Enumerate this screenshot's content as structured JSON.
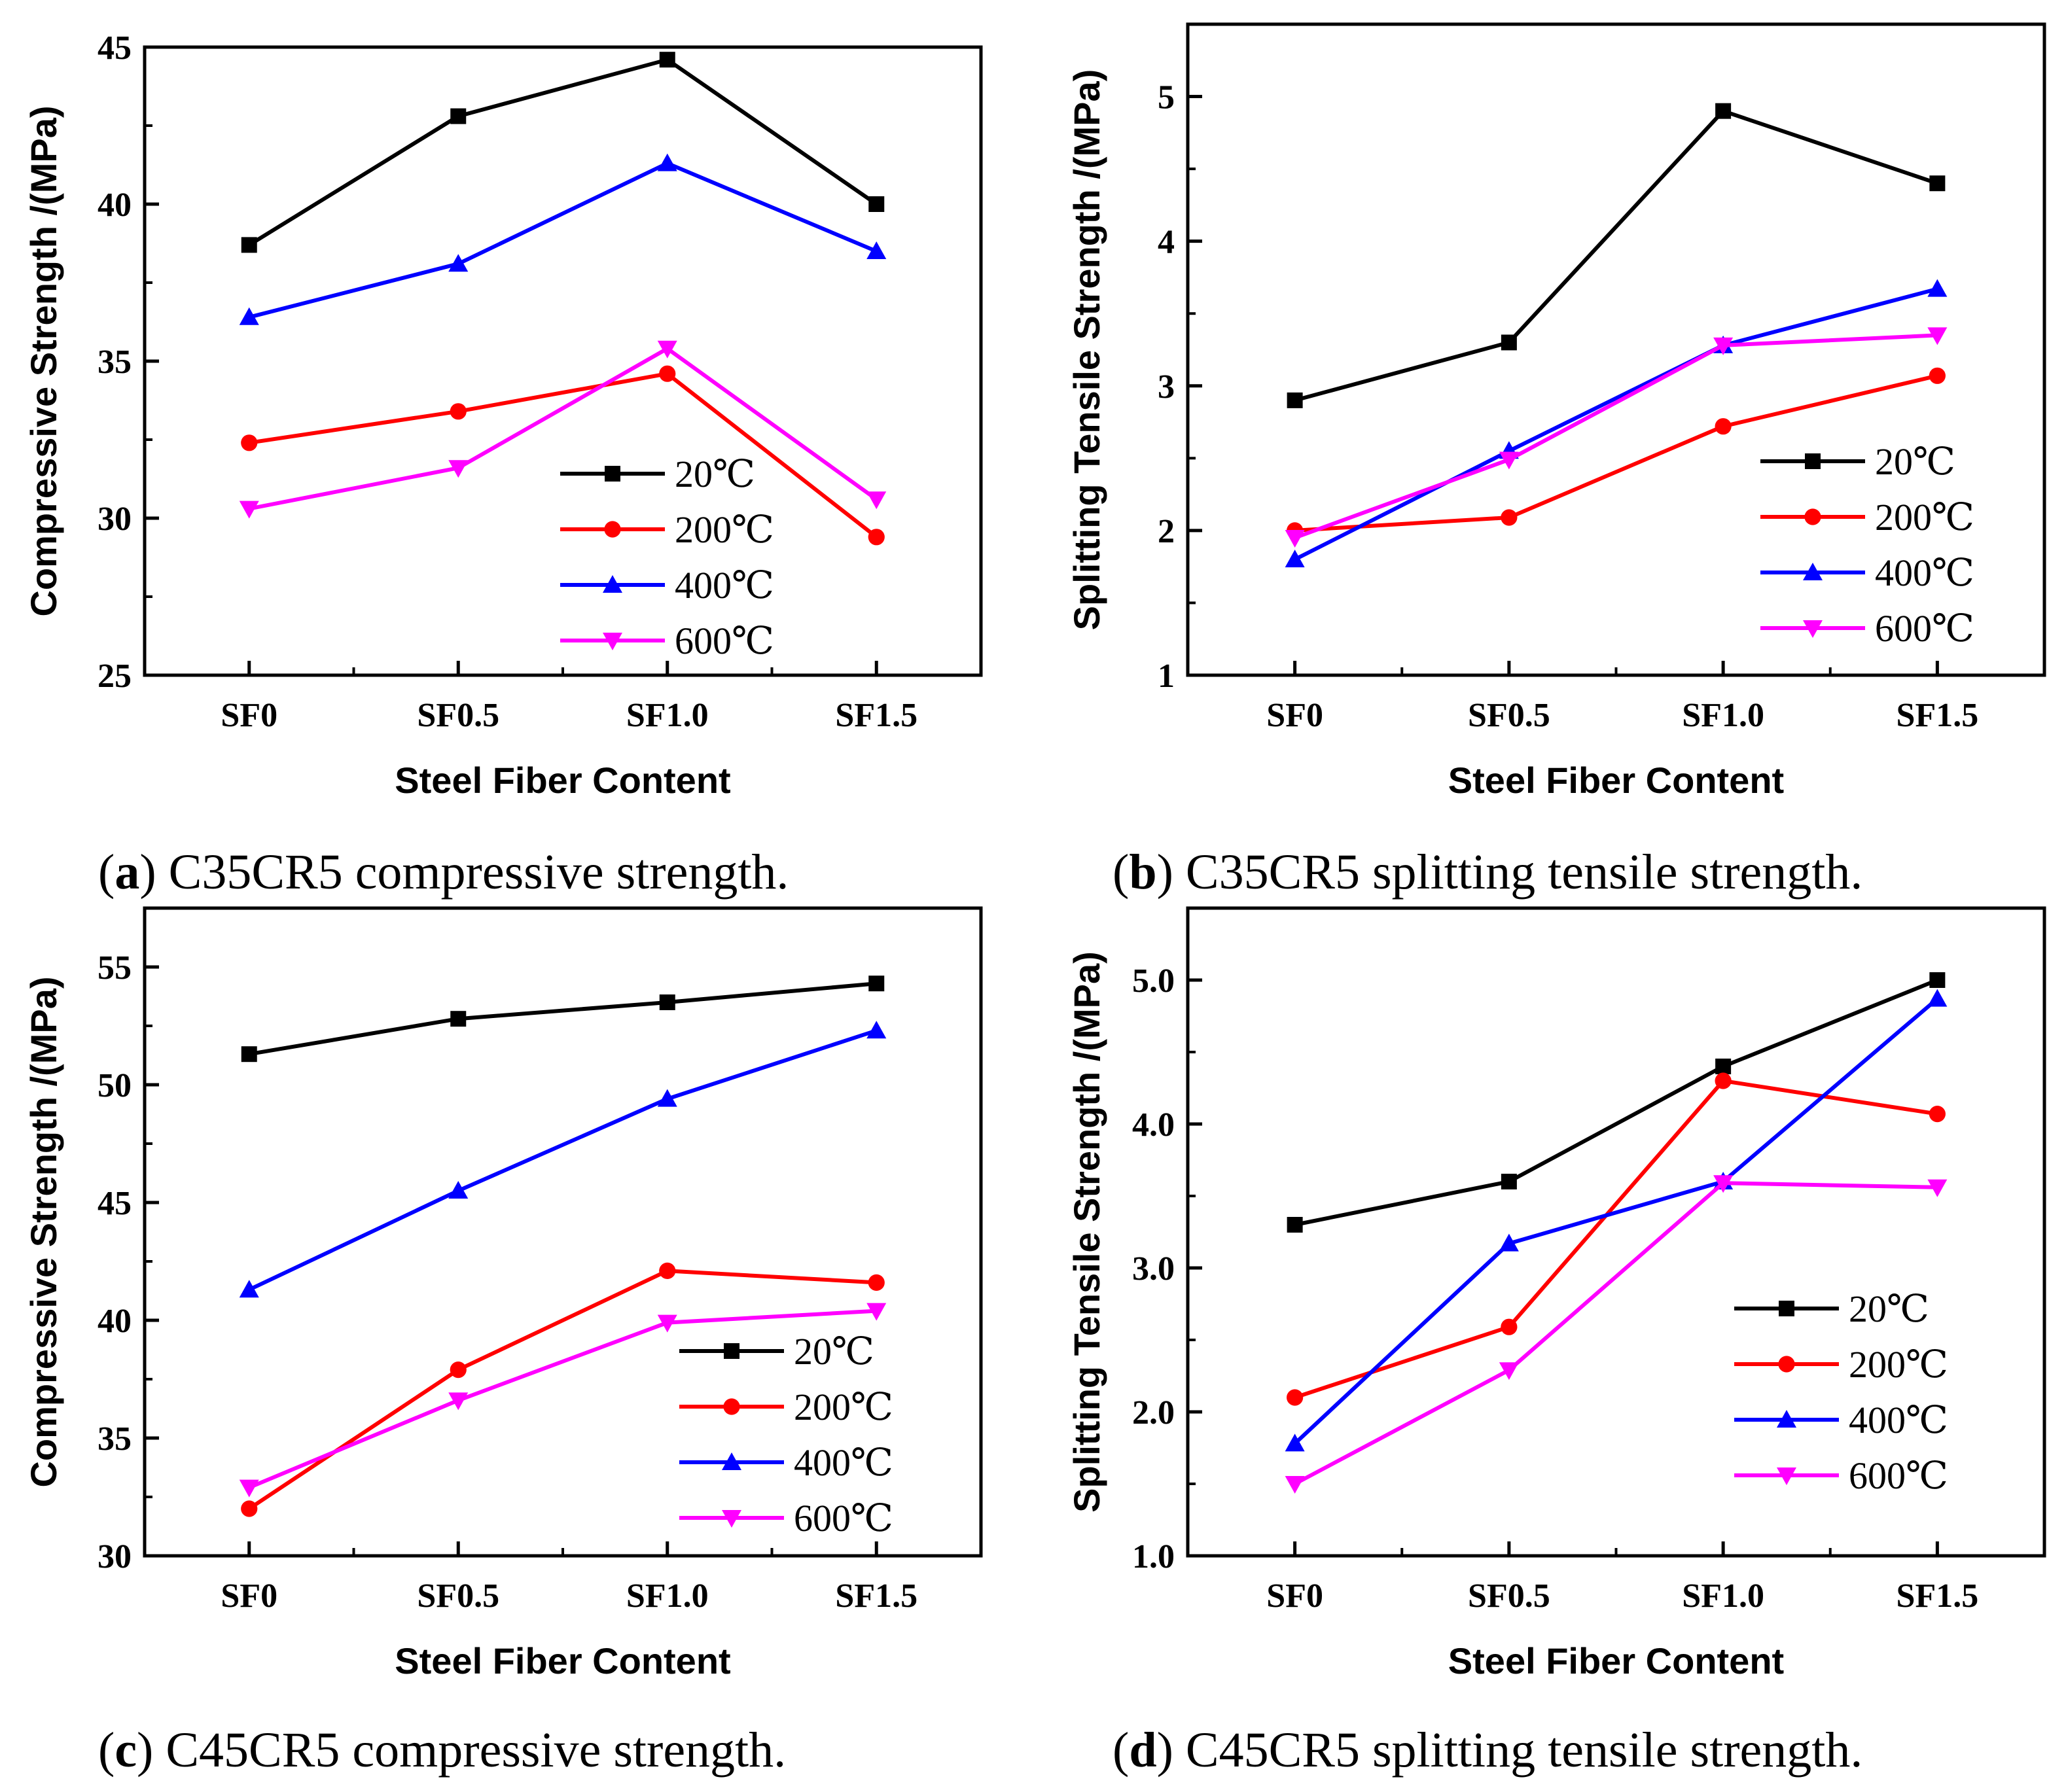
{
  "figure": {
    "categories": [
      "SF0",
      "SF0.5",
      "SF1.0",
      "SF1.5"
    ],
    "legend_labels": [
      "20℃",
      "200℃",
      "400℃",
      "600℃"
    ],
    "series_colors": [
      "#000000",
      "#ff0000",
      "#0000ff",
      "#ff00ff"
    ],
    "marker_shapes": [
      "square",
      "circle",
      "triangle-up",
      "triangle-down"
    ]
  },
  "chart_data": [
    {
      "id": "a",
      "type": "line",
      "caption_letter": "a",
      "caption_text": "C35CR5 compressive strength.",
      "xlabel": "Steel  Fiber  Content",
      "ylabel": "Compressive  Strength  /(MPa)",
      "categories": [
        "SF0",
        "SF0.5",
        "SF1.0",
        "SF1.5"
      ],
      "ylim": [
        25,
        45
      ],
      "yticks": [
        25,
        30,
        35,
        40,
        45
      ],
      "ytick_labels": [
        "25",
        "30",
        "35",
        "40",
        "45"
      ],
      "legend_position": "bottom-right",
      "series": [
        {
          "name": "20℃",
          "values": [
            38.7,
            42.8,
            44.6,
            40.0
          ]
        },
        {
          "name": "200℃",
          "values": [
            32.4,
            33.4,
            34.6,
            29.4
          ]
        },
        {
          "name": "400℃",
          "values": [
            36.4,
            38.1,
            41.3,
            38.5
          ]
        },
        {
          "name": "600℃",
          "values": [
            30.3,
            31.6,
            35.4,
            30.6
          ]
        }
      ]
    },
    {
      "id": "b",
      "type": "line",
      "caption_letter": "b",
      "caption_text": "C35CR5 splitting tensile strength.",
      "xlabel": "Steel  Fiber  Content",
      "ylabel": "Splitting Tensile Strength  /(MPa)",
      "categories": [
        "SF0",
        "SF0.5",
        "SF1.0",
        "SF1.5"
      ],
      "ylim": [
        1,
        5.5
      ],
      "yticks": [
        1,
        2,
        3,
        4,
        5
      ],
      "ytick_labels": [
        "1",
        "2",
        "3",
        "4",
        "5"
      ],
      "legend_position": "bottom-right",
      "series": [
        {
          "name": "20℃",
          "values": [
            2.9,
            3.3,
            4.9,
            4.4
          ]
        },
        {
          "name": "200℃",
          "values": [
            2.0,
            2.09,
            2.72,
            3.07
          ]
        },
        {
          "name": "400℃",
          "values": [
            1.8,
            2.55,
            3.28,
            3.67
          ]
        },
        {
          "name": "600℃",
          "values": [
            1.95,
            2.49,
            3.28,
            3.35
          ]
        }
      ]
    },
    {
      "id": "c",
      "type": "line",
      "caption_letter": "c",
      "caption_text": "C45CR5 compressive strength.",
      "xlabel": "Steel  Fiber  Content",
      "ylabel": "Compressive  Strength  /(MPa)",
      "categories": [
        "SF0",
        "SF0.5",
        "SF1.0",
        "SF1.5"
      ],
      "ylim": [
        30,
        57.5
      ],
      "yticks": [
        30,
        35,
        40,
        45,
        50,
        55
      ],
      "ytick_labels": [
        "30",
        "35",
        "40",
        "45",
        "50",
        "55"
      ],
      "legend_position": "bottom-right",
      "series": [
        {
          "name": "20℃",
          "values": [
            51.3,
            52.8,
            53.5,
            54.3
          ]
        },
        {
          "name": "200℃",
          "values": [
            32.0,
            37.9,
            42.1,
            41.6
          ]
        },
        {
          "name": "400℃",
          "values": [
            41.3,
            45.5,
            49.4,
            52.3
          ]
        },
        {
          "name": "600℃",
          "values": [
            32.9,
            36.6,
            39.9,
            40.4
          ]
        }
      ]
    },
    {
      "id": "d",
      "type": "line",
      "caption_letter": "d",
      "caption_text": "C45CR5 splitting tensile strength.",
      "xlabel": "Steel  Fiber  Content",
      "ylabel": "Splitting Tensile Strength  /(MPa)",
      "categories": [
        "SF0",
        "SF0.5",
        "SF1.0",
        "SF1.5"
      ],
      "ylim": [
        1,
        5.5
      ],
      "yticks": [
        1,
        2,
        3,
        4,
        5
      ],
      "ytick_labels": [
        "1.0",
        "2.0",
        "3.0",
        "4.0",
        "5.0"
      ],
      "legend_position": "bottom-right",
      "series": [
        {
          "name": "20℃",
          "values": [
            3.3,
            3.6,
            4.4,
            5.0
          ]
        },
        {
          "name": "200℃",
          "values": [
            2.1,
            2.59,
            4.3,
            4.07
          ]
        },
        {
          "name": "400℃",
          "values": [
            1.78,
            3.17,
            3.6,
            4.87
          ]
        },
        {
          "name": "600℃",
          "values": [
            1.5,
            2.29,
            3.59,
            3.56
          ]
        }
      ]
    }
  ]
}
